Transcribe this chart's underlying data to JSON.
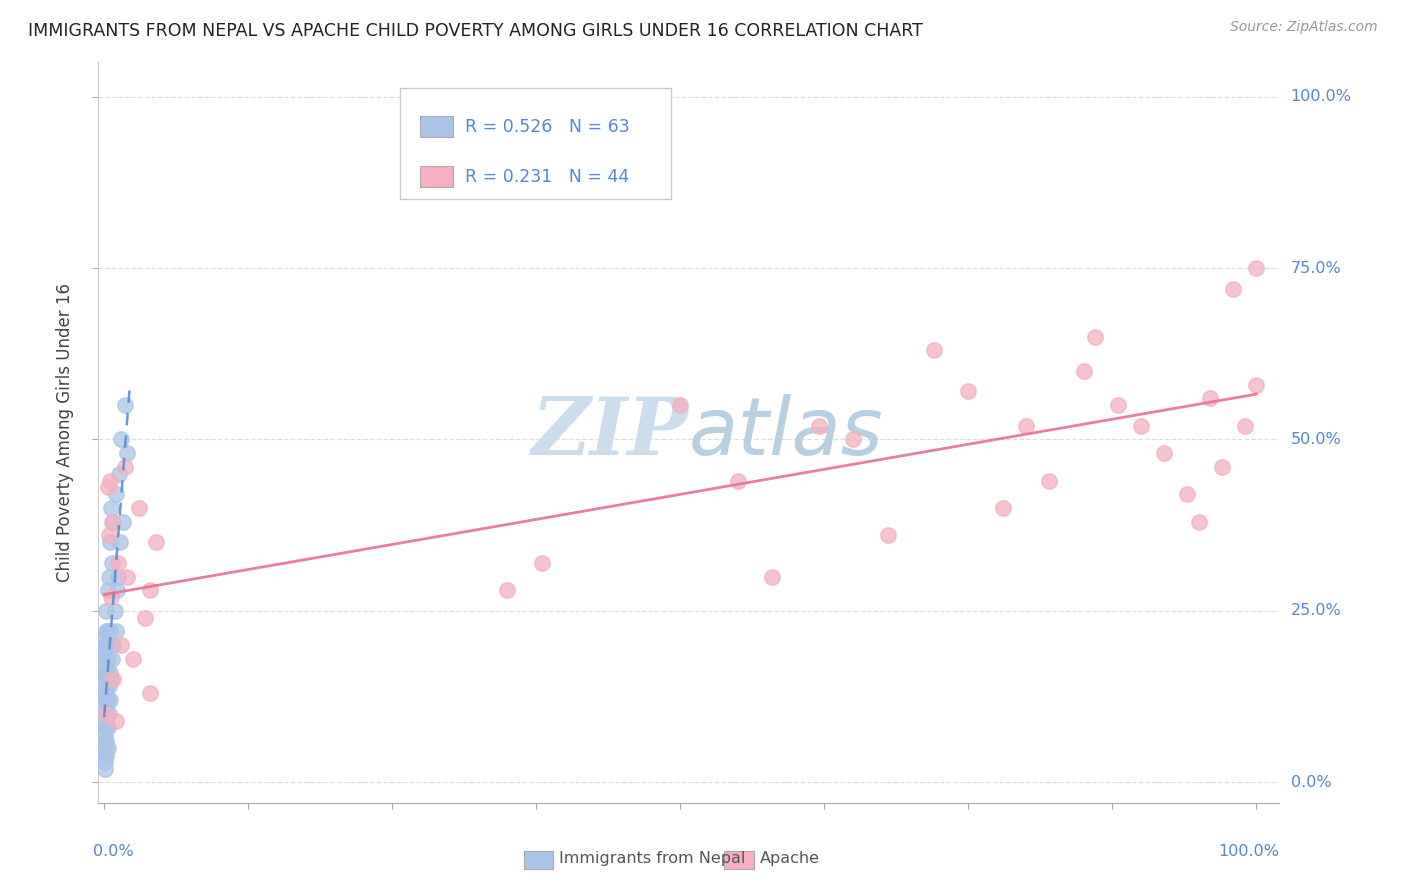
{
  "title": "IMMIGRANTS FROM NEPAL VS APACHE CHILD POVERTY AMONG GIRLS UNDER 16 CORRELATION CHART",
  "source": "Source: ZipAtlas.com",
  "ylabel": "Child Poverty Among Girls Under 16",
  "legend_blue_R": "0.526",
  "legend_blue_N": "63",
  "legend_pink_R": "0.231",
  "legend_pink_N": "44",
  "legend_label_blue": "Immigrants from Nepal",
  "legend_label_pink": "Apache",
  "ytick_values": [
    0.0,
    0.25,
    0.5,
    0.75,
    1.0
  ],
  "ytick_labels": [
    "0.0%",
    "25.0%",
    "50.0%",
    "75.0%",
    "100.0%"
  ],
  "blue_scatter_x": [
    0.001,
    0.001,
    0.001,
    0.001,
    0.001,
    0.001,
    0.001,
    0.001,
    0.001,
    0.001,
    0.001,
    0.001,
    0.001,
    0.001,
    0.001,
    0.001,
    0.001,
    0.001,
    0.001,
    0.001,
    0.002,
    0.002,
    0.002,
    0.002,
    0.002,
    0.002,
    0.002,
    0.002,
    0.002,
    0.002,
    0.003,
    0.003,
    0.003,
    0.003,
    0.003,
    0.003,
    0.003,
    0.004,
    0.004,
    0.004,
    0.004,
    0.005,
    0.005,
    0.005,
    0.005,
    0.006,
    0.006,
    0.006,
    0.007,
    0.007,
    0.008,
    0.008,
    0.009,
    0.01,
    0.01,
    0.011,
    0.012,
    0.013,
    0.014,
    0.015,
    0.016,
    0.018,
    0.02
  ],
  "blue_scatter_y": [
    0.02,
    0.03,
    0.04,
    0.05,
    0.06,
    0.07,
    0.08,
    0.09,
    0.1,
    0.11,
    0.12,
    0.13,
    0.14,
    0.15,
    0.16,
    0.17,
    0.18,
    0.19,
    0.2,
    0.21,
    0.04,
    0.06,
    0.08,
    0.1,
    0.12,
    0.14,
    0.16,
    0.2,
    0.22,
    0.25,
    0.05,
    0.08,
    0.12,
    0.16,
    0.18,
    0.22,
    0.28,
    0.1,
    0.14,
    0.2,
    0.3,
    0.12,
    0.16,
    0.22,
    0.35,
    0.15,
    0.2,
    0.4,
    0.18,
    0.32,
    0.2,
    0.38,
    0.25,
    0.22,
    0.42,
    0.28,
    0.3,
    0.45,
    0.35,
    0.5,
    0.38,
    0.55,
    0.48
  ],
  "pink_scatter_x": [
    0.002,
    0.003,
    0.004,
    0.005,
    0.006,
    0.007,
    0.008,
    0.01,
    0.012,
    0.015,
    0.018,
    0.02,
    0.025,
    0.03,
    0.035,
    0.04,
    0.04,
    0.045,
    0.35,
    0.38,
    0.5,
    0.55,
    0.58,
    0.62,
    0.65,
    0.68,
    0.72,
    0.75,
    0.78,
    0.8,
    0.82,
    0.85,
    0.86,
    0.88,
    0.9,
    0.92,
    0.94,
    0.95,
    0.96,
    0.97,
    0.98,
    0.99,
    1.0,
    1.0
  ],
  "pink_scatter_y": [
    0.1,
    0.43,
    0.36,
    0.44,
    0.27,
    0.38,
    0.15,
    0.09,
    0.32,
    0.2,
    0.46,
    0.3,
    0.18,
    0.4,
    0.24,
    0.28,
    0.13,
    0.35,
    0.28,
    0.32,
    0.55,
    0.44,
    0.3,
    0.52,
    0.5,
    0.36,
    0.63,
    0.57,
    0.4,
    0.52,
    0.44,
    0.6,
    0.65,
    0.55,
    0.52,
    0.48,
    0.42,
    0.38,
    0.56,
    0.46,
    0.72,
    0.52,
    0.58,
    0.75
  ],
  "blue_color": "#aac4e8",
  "pink_color": "#f5afc0",
  "blue_line_color": "#5588cc",
  "pink_line_color": "#e87090",
  "watermark": "ZIPatlas",
  "watermark_color": "#ccdded",
  "background_color": "#ffffff",
  "grid_color": "#dddddd"
}
